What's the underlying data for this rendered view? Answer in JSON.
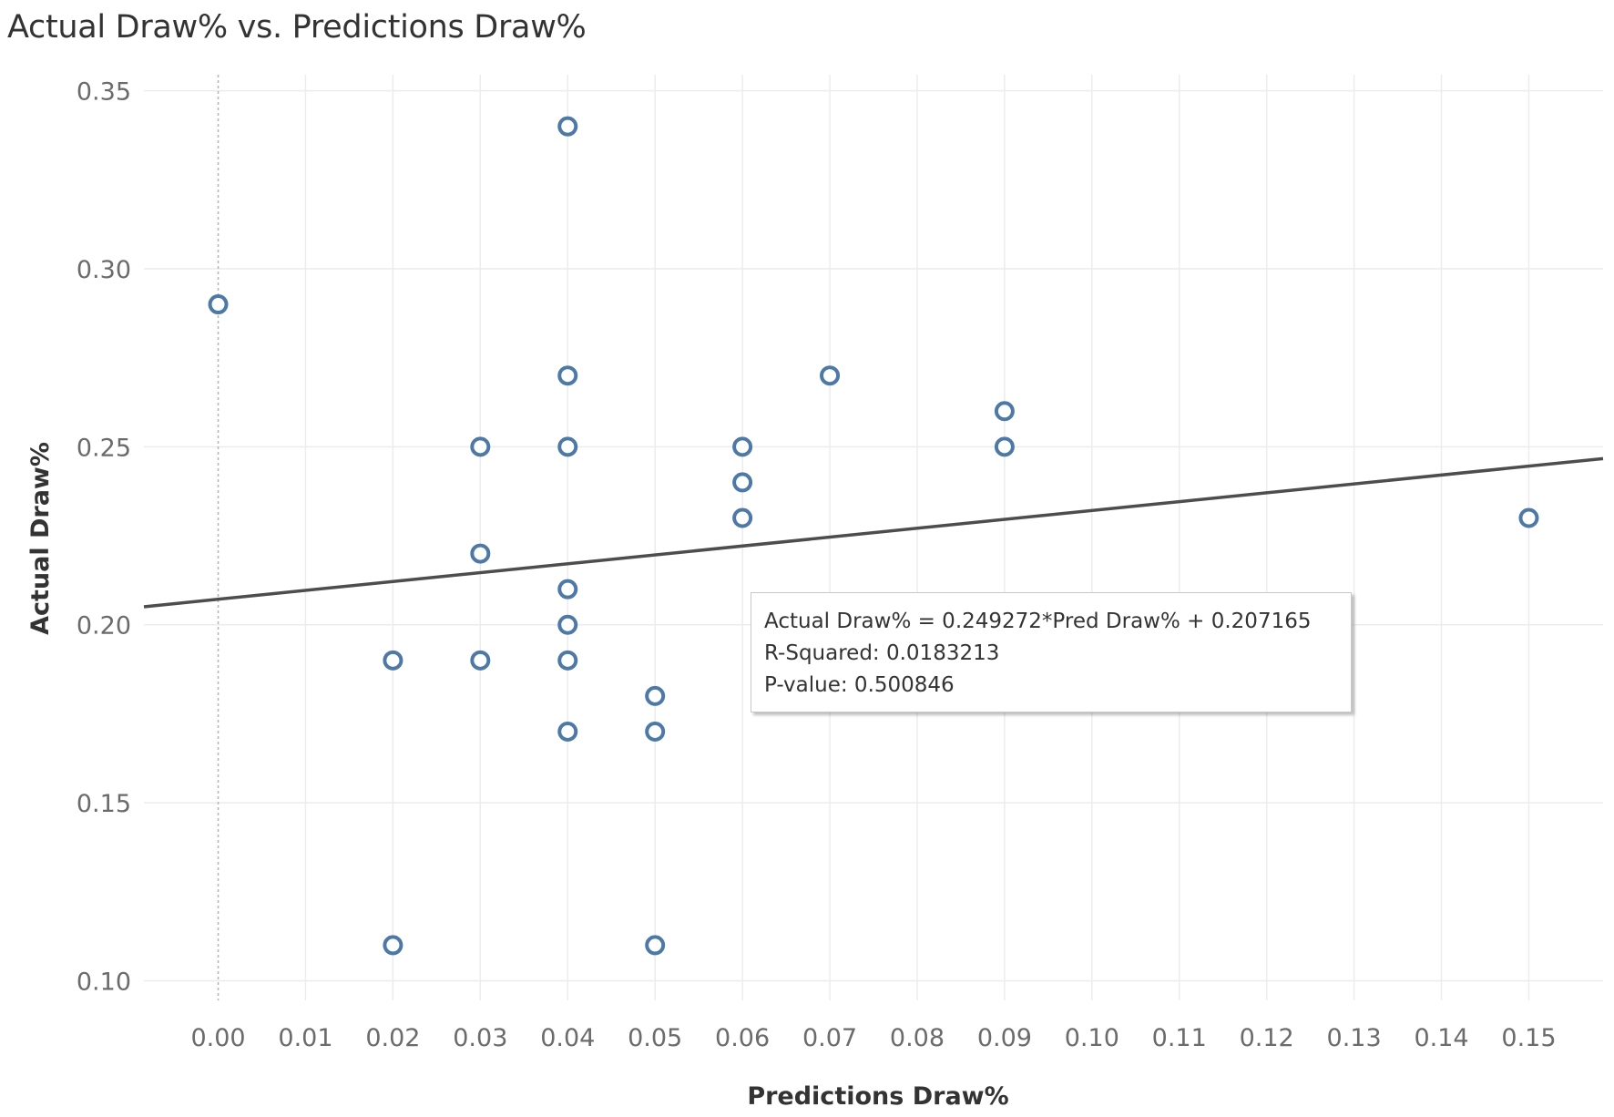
{
  "chart_data": {
    "type": "scatter",
    "title": "Actual Draw% vs. Predictions Draw%",
    "xlabel": "Predictions Draw%",
    "ylabel": "Actual Draw%",
    "xlim": [
      -0.0085,
      0.1585
    ],
    "ylim": [
      0.0945,
      0.3545
    ],
    "xticks": [
      "0.00",
      "0.01",
      "0.02",
      "0.03",
      "0.04",
      "0.05",
      "0.06",
      "0.07",
      "0.08",
      "0.09",
      "0.10",
      "0.11",
      "0.12",
      "0.13",
      "0.14",
      "0.15"
    ],
    "yticks": [
      "0.10",
      "0.15",
      "0.20",
      "0.25",
      "0.30",
      "0.35"
    ],
    "grid": true,
    "marker": "hollow-circle",
    "marker_color": "#4e79a7",
    "trend_color": "#4d4d4d",
    "points": [
      {
        "x": 0.0,
        "y": 0.29
      },
      {
        "x": 0.02,
        "y": 0.19
      },
      {
        "x": 0.02,
        "y": 0.11
      },
      {
        "x": 0.03,
        "y": 0.25
      },
      {
        "x": 0.03,
        "y": 0.22
      },
      {
        "x": 0.03,
        "y": 0.19
      },
      {
        "x": 0.04,
        "y": 0.34
      },
      {
        "x": 0.04,
        "y": 0.27
      },
      {
        "x": 0.04,
        "y": 0.25
      },
      {
        "x": 0.04,
        "y": 0.21
      },
      {
        "x": 0.04,
        "y": 0.2
      },
      {
        "x": 0.04,
        "y": 0.19
      },
      {
        "x": 0.04,
        "y": 0.17
      },
      {
        "x": 0.05,
        "y": 0.18
      },
      {
        "x": 0.05,
        "y": 0.17
      },
      {
        "x": 0.05,
        "y": 0.11
      },
      {
        "x": 0.06,
        "y": 0.25
      },
      {
        "x": 0.06,
        "y": 0.24
      },
      {
        "x": 0.06,
        "y": 0.23
      },
      {
        "x": 0.07,
        "y": 0.27
      },
      {
        "x": 0.09,
        "y": 0.26
      },
      {
        "x": 0.09,
        "y": 0.25
      },
      {
        "x": 0.15,
        "y": 0.23
      }
    ],
    "trend_line": {
      "slope": 0.249272,
      "intercept": 0.207165,
      "equation": "Actual Draw% = 0.249272*Pred Draw% + 0.207165",
      "r_squared": "R-Squared: 0.0183213",
      "p_value": "P-value: 0.500846"
    }
  }
}
